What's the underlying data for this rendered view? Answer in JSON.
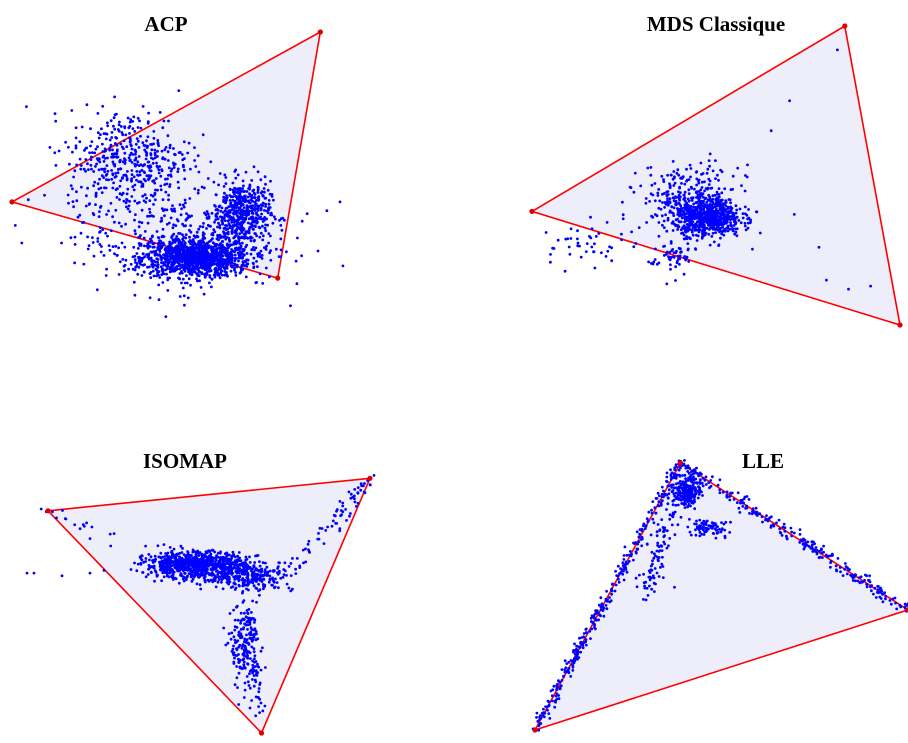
{
  "colors": {
    "points": "#0000ff",
    "simplex_edge": "#ff0000",
    "simplex_vertex": "#e00000",
    "simplex_fill": "#eeeefa",
    "background": "#ffffff"
  },
  "chart_data": [
    {
      "type": "scatter",
      "title": "ACP",
      "xlim": [
        0,
        10
      ],
      "ylim": [
        0,
        10
      ],
      "grid": false,
      "axes_visible": false,
      "simplex": [
        [
          0.0,
          4.2
        ],
        [
          9.4,
          10.0
        ],
        [
          8.1,
          1.6
        ]
      ],
      "clusters": [
        {
          "center": [
            5.6,
            2.3
          ],
          "spread": [
            1.5,
            0.6
          ],
          "count": 1100
        },
        {
          "center": [
            7.0,
            3.8
          ],
          "spread": [
            0.8,
            1.0
          ],
          "count": 500
        },
        {
          "center": [
            3.6,
            5.6
          ],
          "spread": [
            1.7,
            1.6
          ],
          "count": 450
        },
        {
          "center": [
            5.0,
            2.9
          ],
          "spread": [
            2.8,
            1.6
          ],
          "count": 350
        }
      ],
      "outliers": [
        [
          9.6,
          3.9
        ],
        [
          10.0,
          4.2
        ],
        [
          0.1,
          3.4
        ],
        [
          0.3,
          2.8
        ],
        [
          2.6,
          1.2
        ],
        [
          9.0,
          3.8
        ]
      ]
    },
    {
      "type": "scatter",
      "title": "MDS Classique",
      "xlim": [
        0,
        10
      ],
      "ylim": [
        0,
        10
      ],
      "grid": false,
      "axes_visible": false,
      "simplex": [
        [
          0.0,
          3.8
        ],
        [
          8.5,
          10.0
        ],
        [
          10.0,
          0.0
        ]
      ],
      "clusters": [
        {
          "center": [
            4.8,
            3.6
          ],
          "spread": [
            0.8,
            0.55
          ],
          "count": 650
        },
        {
          "center": [
            4.3,
            4.2
          ],
          "spread": [
            1.2,
            1.0
          ],
          "count": 300
        },
        {
          "center": [
            3.8,
            2.3
          ],
          "spread": [
            0.6,
            0.6
          ],
          "count": 60
        },
        {
          "center": [
            1.5,
            2.7
          ],
          "spread": [
            0.9,
            0.6
          ],
          "count": 40
        }
      ],
      "outliers": [
        [
          8.3,
          9.2
        ],
        [
          7.0,
          7.5
        ],
        [
          6.5,
          6.5
        ],
        [
          5.8,
          5.0
        ],
        [
          8.0,
          1.5
        ],
        [
          8.6,
          1.2
        ],
        [
          9.2,
          1.3
        ],
        [
          7.8,
          2.6
        ],
        [
          0.5,
          2.1
        ],
        [
          0.9,
          1.8
        ]
      ]
    },
    {
      "type": "scatter",
      "title": "ISOMAP",
      "xlim": [
        0,
        10
      ],
      "ylim": [
        0,
        10
      ],
      "grid": false,
      "axes_visible": false,
      "simplex": [
        [
          0.8,
          8.2
        ],
        [
          10.0,
          9.4
        ],
        [
          6.9,
          0.0
        ]
      ],
      "clusters": [
        {
          "center": [
            5.0,
            6.2
          ],
          "spread": [
            1.3,
            0.45
          ],
          "count": 800
        },
        {
          "center": [
            6.6,
            5.8
          ],
          "spread": [
            1.1,
            0.5
          ],
          "count": 250
        },
        {
          "center": [
            6.4,
            3.2
          ],
          "spread": [
            0.35,
            1.4
          ],
          "count": 180
        }
      ],
      "arms": [
        {
          "from": [
            0.8,
            8.2
          ],
          "to": [
            4.2,
            6.2
          ],
          "count": 25,
          "jitter": 0.15
        },
        {
          "from": [
            10.0,
            9.4
          ],
          "to": [
            7.6,
            5.8
          ],
          "count": 70,
          "jitter": 0.15
        },
        {
          "from": [
            6.6,
            4.4
          ],
          "to": [
            6.9,
            0.6
          ],
          "count": 60,
          "jitter": 0.12
        }
      ],
      "outliers": [
        [
          0.2,
          5.9
        ],
        [
          0.4,
          5.9
        ],
        [
          1.2,
          5.8
        ],
        [
          2.0,
          5.9
        ],
        [
          2.4,
          6.0
        ]
      ]
    },
    {
      "type": "scatter",
      "title": "LLE",
      "xlim": [
        0,
        10
      ],
      "ylim": [
        0,
        10
      ],
      "grid": false,
      "axes_visible": false,
      "simplex": [
        [
          3.9,
          10.0
        ],
        [
          10.0,
          4.5
        ],
        [
          0.0,
          0.0
        ]
      ],
      "clusters": [
        {
          "center": [
            4.1,
            8.9
          ],
          "spread": [
            0.3,
            0.5
          ],
          "count": 200
        },
        {
          "center": [
            4.6,
            7.6
          ],
          "spread": [
            0.5,
            0.3
          ],
          "count": 80
        }
      ],
      "arms": [
        {
          "from": [
            3.9,
            10.0
          ],
          "to": [
            0.0,
            0.0
          ],
          "count": 300,
          "jitter": 0.08
        },
        {
          "from": [
            3.9,
            10.0
          ],
          "to": [
            10.0,
            4.5
          ],
          "count": 250,
          "jitter": 0.1
        },
        {
          "from": [
            3.9,
            9.5
          ],
          "to": [
            3.0,
            5.0
          ],
          "count": 120,
          "jitter": 0.15
        }
      ],
      "outliers": [
        [
          3.2,
          6.6
        ],
        [
          2.8,
          5.8
        ]
      ]
    }
  ]
}
